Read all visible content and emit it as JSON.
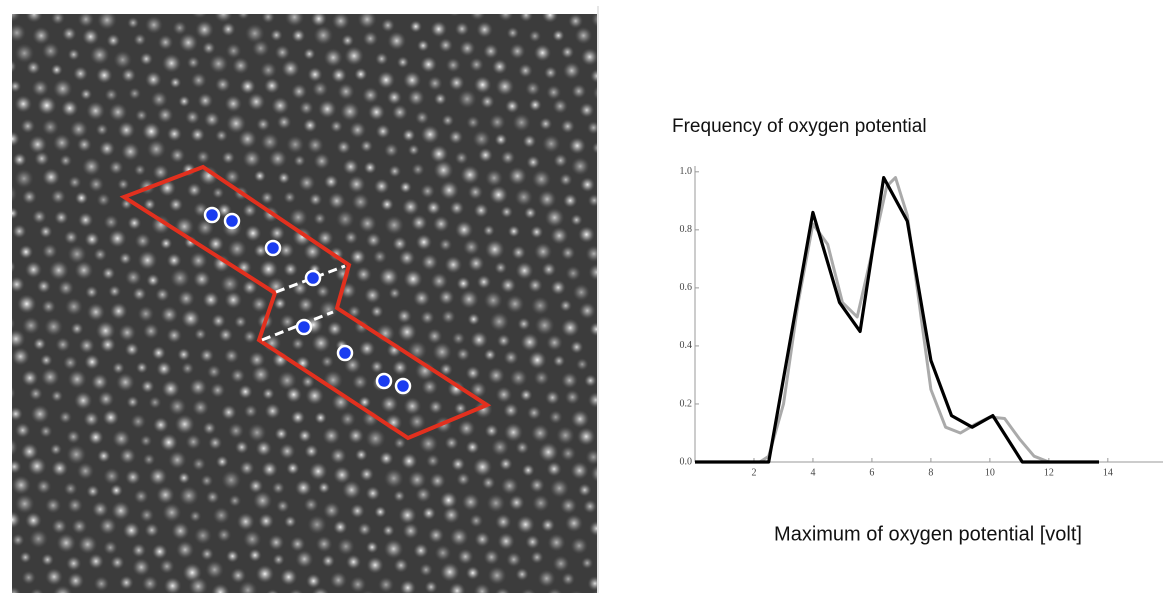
{
  "chart_data": {
    "type": "line",
    "title": "Frequency of oxygen potential",
    "x_label": "Maximum of oxygen potential [volt]",
    "xlim": [
      0,
      15.6
    ],
    "ylim": [
      0,
      1.02
    ],
    "xticks": [
      2,
      4,
      6,
      8,
      10,
      12,
      14
    ],
    "yticks": [
      {
        "value": 0,
        "label": "0.0"
      },
      0.2,
      0.4,
      0.6,
      0.8,
      {
        "value": 1,
        "label": "1.0"
      }
    ],
    "series": [
      {
        "color": "#aaaaaa",
        "x": [
          2.2,
          2.5,
          3,
          3.5,
          4,
          4.5,
          5,
          5.5,
          6,
          6.5,
          6.8,
          7.2,
          7.6,
          8,
          8.5,
          9,
          9.5,
          10,
          10.5,
          11,
          11.5,
          12
        ],
        "values": [
          0,
          0.02,
          0.2,
          0.55,
          0.82,
          0.75,
          0.55,
          0.5,
          0.72,
          0.95,
          0.98,
          0.85,
          0.55,
          0.25,
          0.12,
          0.1,
          0.13,
          0.155,
          0.15,
          0.08,
          0.02,
          0
        ]
      },
      {
        "color": "#000000",
        "x": [
          0,
          2.5,
          4,
          4.9,
          5.6,
          6.4,
          7.2,
          8,
          8.7,
          9.4,
          10.1,
          11.1,
          13.7
        ],
        "values": [
          0,
          0,
          0.86,
          0.55,
          0.45,
          0.98,
          0.83,
          0.35,
          0.16,
          0.12,
          0.16,
          0,
          0
        ]
      }
    ]
  }
}
